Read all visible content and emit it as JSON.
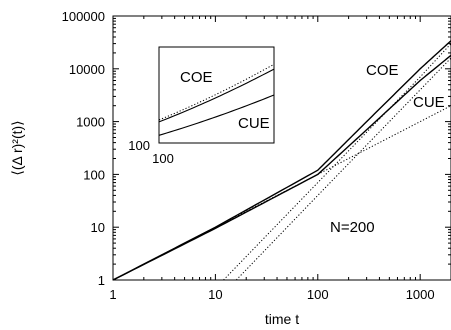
{
  "chart_data": [
    {
      "type": "line",
      "xlabel": "time t",
      "ylabel": "⟨(Δ r)²(t)⟩",
      "xscale": "log",
      "yscale": "log",
      "xlim": [
        1,
        2000
      ],
      "ylim": [
        1,
        100000
      ],
      "x_ticks": [
        1,
        10,
        100,
        1000
      ],
      "x_tick_labels": [
        "1",
        "10",
        "100",
        "1000"
      ],
      "y_ticks": [
        1,
        10,
        100,
        1000,
        10000,
        100000
      ],
      "y_tick_labels": [
        "1",
        "10",
        "100",
        "1000",
        "10000",
        "100000"
      ],
      "grid": false,
      "annotations": [
        {
          "text": "COE",
          "x": 450,
          "y": 14000
        },
        {
          "text": "CUE",
          "x": 950,
          "y": 2700
        },
        {
          "text": "N=200",
          "x": 200,
          "y": 9
        }
      ],
      "series": [
        {
          "style": "solid",
          "x": [
            1,
            10,
            100,
            300,
            1000,
            2000
          ],
          "y": [
            1,
            10,
            120,
            1000,
            10000,
            34000
          ]
        },
        {
          "style": "solid",
          "x": [
            1,
            10,
            100,
            300,
            1000,
            2000
          ],
          "y": [
            1,
            9.5,
            100,
            700,
            6000,
            18000
          ]
        },
        {
          "style": "dotted",
          "x": [
            12,
            100,
            1000,
            2000
          ],
          "y": [
            1,
            70,
            7000,
            30000
          ]
        },
        {
          "style": "dotted",
          "x": [
            16,
            100,
            1000,
            2000
          ],
          "y": [
            1,
            40,
            4000,
            16000
          ]
        },
        {
          "style": "dotted",
          "x": [
            1,
            10,
            100,
            1000,
            2000
          ],
          "y": [
            1,
            10,
            100,
            1000,
            2000
          ]
        }
      ]
    },
    {
      "type": "line",
      "inset": true,
      "y_tick_labels": [
        "100"
      ],
      "x_tick_labels": [
        "100"
      ],
      "annotations": [
        {
          "text": "COE"
        },
        {
          "text": "CUE"
        }
      ],
      "series": [
        {
          "style": "solid",
          "x": [
            0,
            1
          ],
          "y": [
            0.22,
            0.77
          ]
        },
        {
          "style": "solid",
          "x": [
            0,
            1
          ],
          "y": [
            0.08,
            0.5
          ]
        },
        {
          "style": "dotted",
          "x": [
            0,
            1
          ],
          "y": [
            0.24,
            0.82
          ]
        }
      ]
    }
  ]
}
